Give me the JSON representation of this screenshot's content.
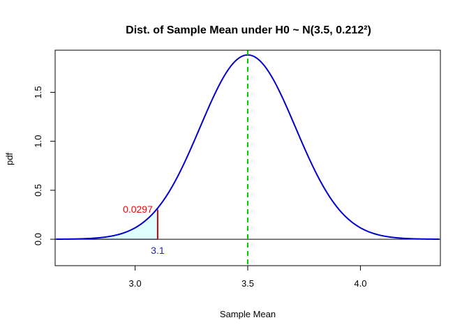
{
  "chart_data": {
    "type": "line",
    "title": "Dist. of Sample Mean under H0 ~ N(3.5, 0.212²)",
    "xlabel": "Sample Mean",
    "ylabel": "pdf",
    "xlim": [
      2.645,
      4.355
    ],
    "ylim": [
      -0.27,
      1.93
    ],
    "x_ticks": [
      3.0,
      3.5,
      4.0
    ],
    "x_tick_labels": [
      "3.0",
      "3.5",
      "4.0"
    ],
    "y_ticks": [
      0.0,
      0.5,
      1.0,
      1.5
    ],
    "y_tick_labels": [
      "0.0",
      "0.5",
      "1.0",
      "1.5"
    ],
    "series": [
      {
        "color": "#0000cc",
        "distribution": {
          "mean": 3.5,
          "sd": 0.212
        },
        "x_range": [
          2.65,
          4.35
        ]
      }
    ],
    "mean_line": {
      "x": 3.5,
      "color": "#00cc00",
      "style": "dashed"
    },
    "zero_line": {
      "y": 0,
      "color": "#000000"
    },
    "shaded_region": {
      "from": 2.65,
      "to": 3.1,
      "fill": "#e0ffff",
      "outline": "#0000cc"
    },
    "critical_value": {
      "x": 3.1,
      "y": 0.2985,
      "color": "#cc0000"
    },
    "annotations": [
      {
        "text": "0.0297",
        "x": 3.1,
        "y": 0.2985,
        "color": "#ff0000",
        "position": "left"
      },
      {
        "text": "3.1",
        "x": 3.1,
        "y": 0,
        "color": "#2222cc",
        "position": "below"
      }
    ]
  }
}
